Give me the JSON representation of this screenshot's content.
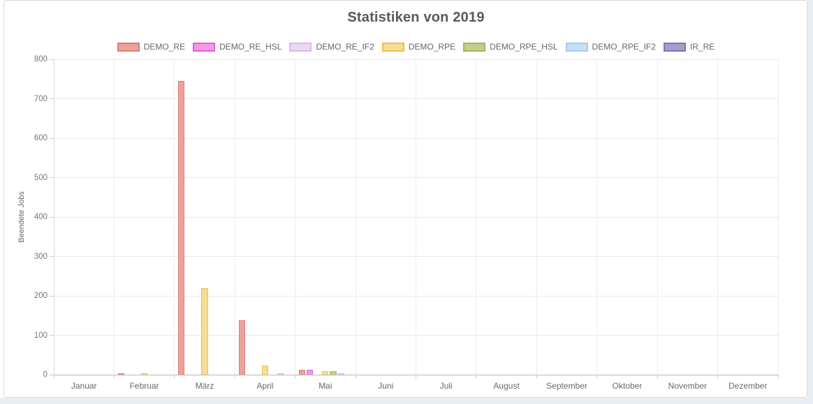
{
  "chart_data": {
    "type": "bar",
    "title": "Statistiken von 2019",
    "ylabel": "Beendete Jobs",
    "ylim": [
      0,
      800
    ],
    "ytick_step": 100,
    "grid": true,
    "legend_position": "top",
    "categories": [
      "Januar",
      "Februar",
      "März",
      "April",
      "Mai",
      "Juni",
      "Juli",
      "August",
      "September",
      "Oktober",
      "November",
      "Dezember"
    ],
    "series": [
      {
        "name": "DEMO_RE",
        "fill": "#eba29b",
        "border": "#dc7d75",
        "values": [
          0,
          3,
          746,
          138,
          13,
          0,
          0,
          0,
          0,
          0,
          0,
          0
        ]
      },
      {
        "name": "DEMO_RE_HSL",
        "fill": "#f19ae9",
        "border": "#e55fdb",
        "values": [
          0,
          0,
          0,
          0,
          13,
          0,
          0,
          0,
          0,
          0,
          0,
          0
        ]
      },
      {
        "name": "DEMO_RE_IF2",
        "fill": "#ecd9f1",
        "border": "#dcb9e6",
        "values": [
          0,
          0,
          0,
          0,
          0,
          0,
          0,
          0,
          0,
          0,
          0,
          0
        ]
      },
      {
        "name": "DEMO_RPE",
        "fill": "#f7dc93",
        "border": "#edc24b",
        "values": [
          0,
          4,
          220,
          23,
          9,
          0,
          0,
          0,
          0,
          0,
          0,
          0
        ]
      },
      {
        "name": "DEMO_RPE_HSL",
        "fill": "#c5cd8e",
        "border": "#a6b458",
        "values": [
          0,
          0,
          0,
          0,
          9,
          0,
          0,
          0,
          0,
          0,
          0,
          0
        ]
      },
      {
        "name": "DEMO_RPE_IF2",
        "fill": "#c8def4",
        "border": "#a5c9ee",
        "values": [
          0,
          0,
          0,
          2,
          2,
          0,
          0,
          0,
          0,
          0,
          0,
          0
        ]
      },
      {
        "name": "IR_RE",
        "fill": "#a79ccc",
        "border": "#8175b5",
        "values": [
          0,
          0,
          0,
          0,
          0,
          0,
          0,
          0,
          0,
          0,
          0,
          0
        ]
      }
    ]
  }
}
